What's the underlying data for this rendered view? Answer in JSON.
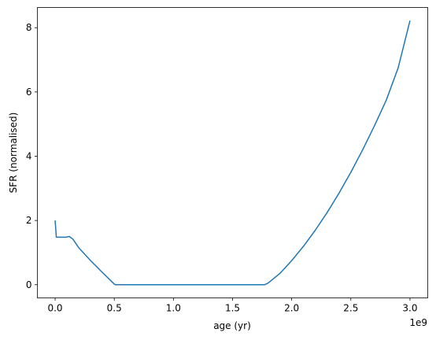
{
  "chart_data": {
    "type": "line",
    "xlabel": "age (yr)",
    "ylabel": "SFR (normalised)",
    "x_offset_label": "1e9",
    "x": [
      0,
      2000000,
      5000000,
      10000000,
      50000000,
      90000000,
      120000000,
      150000000,
      200000000,
      300000000,
      400000000,
      500000000,
      510000000,
      1000000000,
      1500000000,
      1770000000,
      1800000000,
      1900000000,
      2000000000,
      2100000000,
      2200000000,
      2300000000,
      2400000000,
      2500000000,
      2600000000,
      2700000000,
      2800000000,
      2900000000,
      3000000000
    ],
    "series": [
      {
        "color": "#1f77b4",
        "values": [
          2.0,
          1.9,
          1.75,
          1.48,
          1.48,
          1.48,
          1.5,
          1.42,
          1.15,
          0.75,
          0.38,
          0.02,
          0,
          0,
          0,
          0,
          0.05,
          0.35,
          0.75,
          1.2,
          1.7,
          2.25,
          2.85,
          3.5,
          4.2,
          4.95,
          5.75,
          6.75,
          8.22
        ]
      }
    ],
    "xlim": [
      -150000000,
      3150000000
    ],
    "xticks": [
      {
        "value": 0,
        "label": "0.0"
      },
      {
        "value": 500000000,
        "label": "0.5"
      },
      {
        "value": 1000000000,
        "label": "1.0"
      },
      {
        "value": 1500000000,
        "label": "1.5"
      },
      {
        "value": 2000000000,
        "label": "2.0"
      },
      {
        "value": 2500000000,
        "label": "2.5"
      },
      {
        "value": 3000000000,
        "label": "3.0"
      }
    ],
    "ylim": [
      -0.41,
      8.63
    ],
    "yticks": [
      0,
      2,
      4,
      6,
      8
    ],
    "grid": false
  }
}
